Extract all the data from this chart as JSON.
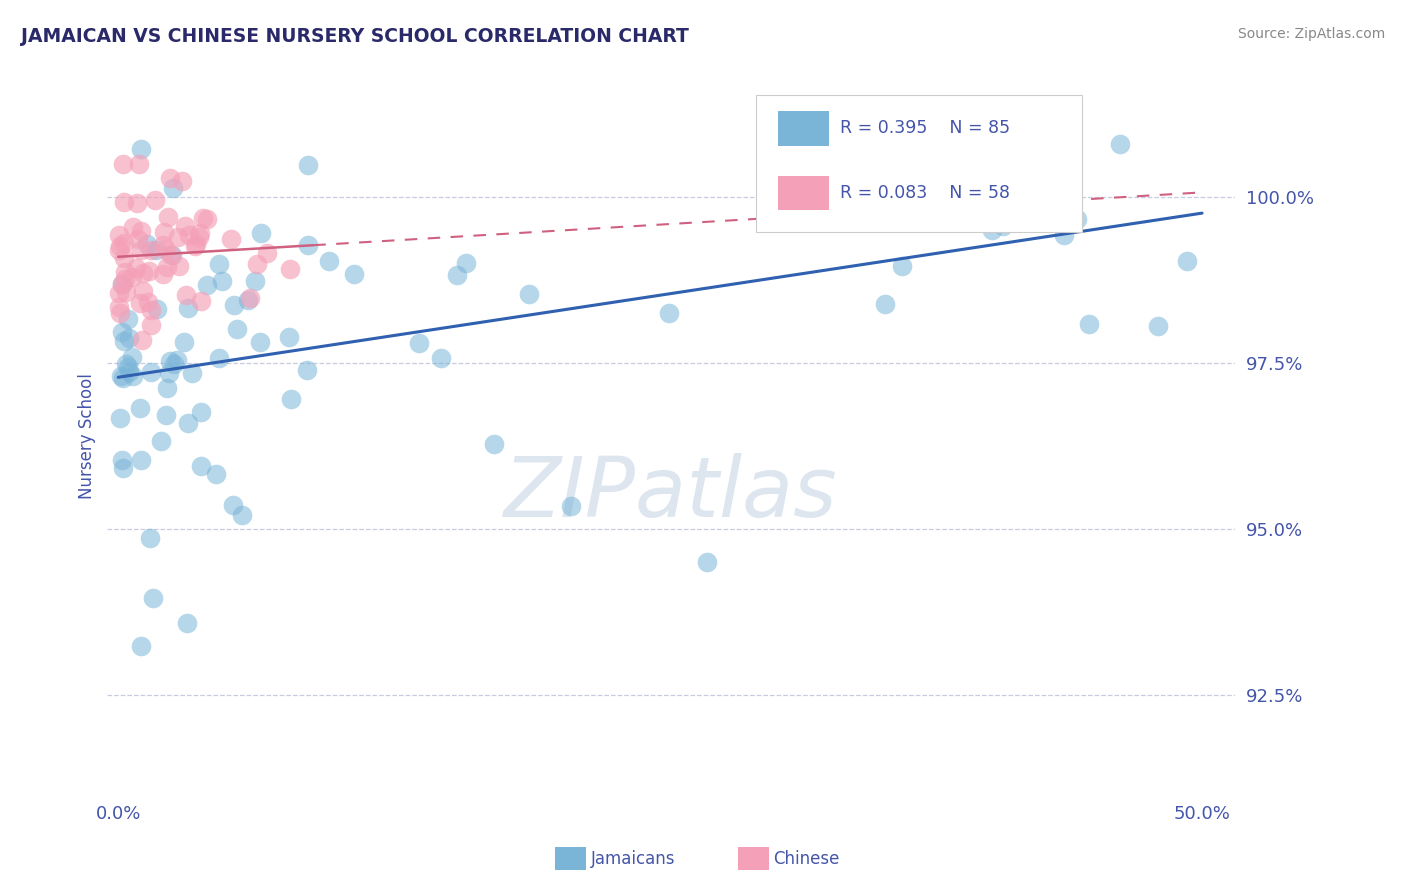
{
  "title": "JAMAICAN VS CHINESE NURSERY SCHOOL CORRELATION CHART",
  "source_text": "Source: ZipAtlas.com",
  "ylabel": "Nursery School",
  "xlim": [
    -0.5,
    51.5
  ],
  "ylim": [
    91.0,
    101.8
  ],
  "yticks": [
    92.5,
    95.0,
    97.5,
    100.0
  ],
  "xticks": [
    0.0,
    50.0
  ],
  "xticklabels": [
    "0.0%",
    "50.0%"
  ],
  "yticklabels": [
    "92.5%",
    "95.0%",
    "97.5%",
    "100.0%"
  ],
  "blue_color": "#7ab5d8",
  "pink_color": "#f4a0b8",
  "blue_line_color": "#3060b0",
  "pink_line_color": "#d06080",
  "blue_R": 0.395,
  "blue_N": 85,
  "pink_R": 0.083,
  "pink_N": 58,
  "title_color": "#2a2a6a",
  "axis_color": "#4455aa",
  "grid_color": "#c8cce0",
  "watermark_color": "#dde5ef",
  "legend_border_color": "#cccccc"
}
